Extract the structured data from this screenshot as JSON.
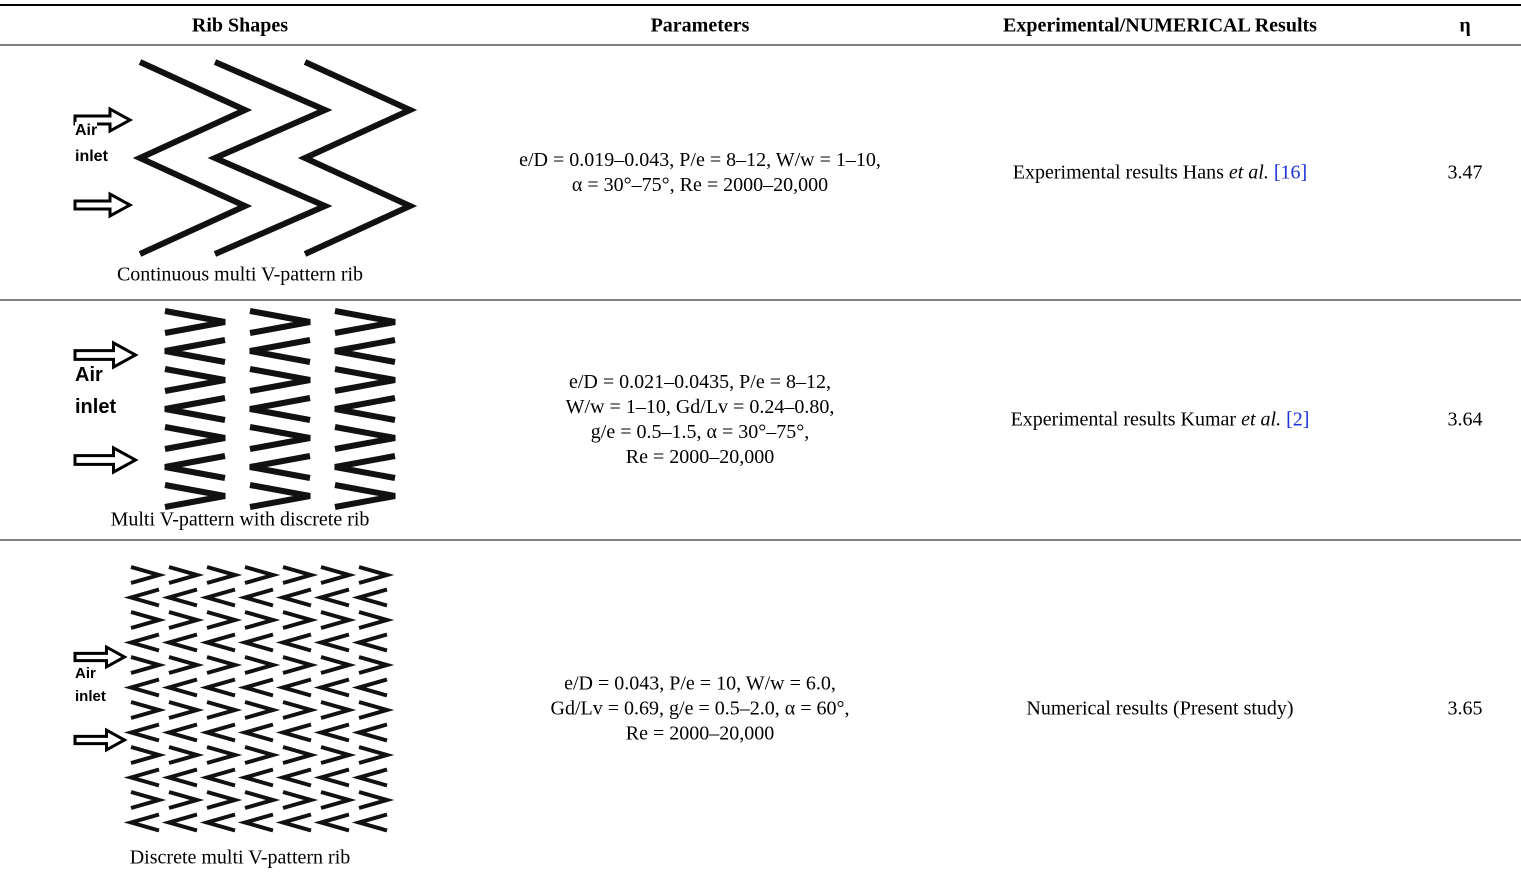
{
  "table": {
    "header": [
      "Rib Shapes",
      "Parameters",
      "Experimental/NUMERICAL Results",
      "η"
    ],
    "rows": [
      {
        "figure_labels": [
          "Air",
          "inlet"
        ],
        "caption": "Continuous multi V-pattern rib",
        "parameters": [
          "e/D = 0.019–0.043, P/e = 8–12, W/w = 1–10,",
          "α = 30°–75°, Re = 2000–20,000"
        ],
        "result": {
          "text": "Experimental results Hans",
          "emphasis": "et al.",
          "reference": "[16]"
        },
        "eta": 3.47
      },
      {
        "figure_labels": [
          "Air",
          "inlet"
        ],
        "caption": "Multi V-pattern with discrete rib",
        "parameters": [
          "e/D = 0.021–0.0435, P/e = 8–12,",
          "W/w = 1–10, Gd/Lv = 0.24–0.80,",
          "g/e = 0.5–1.5, α = 30°–75°,",
          "Re = 2000–20,000"
        ],
        "result": {
          "text": "Experimental results Kumar",
          "emphasis": "et al.",
          "reference": "[2]"
        },
        "eta": 3.64
      },
      {
        "figure_labels": [
          "Air",
          "inlet"
        ],
        "caption": "Discrete multi V-pattern rib",
        "parameters": [
          "e/D = 0.043, P/e = 10, W/w = 6.0,",
          "Gd/Lv = 0.69, g/e = 0.5–2.0, α = 60°,",
          "Re = 2000–20,000"
        ],
        "result": {
          "text": "Numerical results (Present study)"
        },
        "eta": 3.65
      }
    ]
  }
}
